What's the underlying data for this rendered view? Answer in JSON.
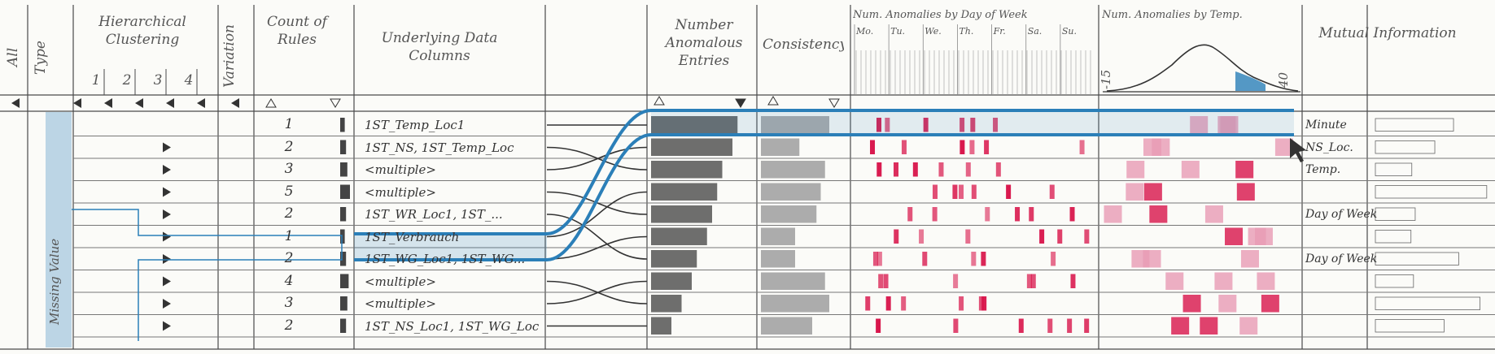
{
  "columns": {
    "all": "All",
    "type": "Type",
    "clustering": "Hierarchical Clustering",
    "clustering_levels": [
      "1",
      "2",
      "3",
      "4"
    ],
    "variation": "Variation",
    "count_rules": "Count of Rules",
    "data_columns": "Underlying Data Columns",
    "anomalous_entries": "Number Anomalous Entries",
    "consistency": "Consistency",
    "day_of_week": "Num. Anomalies by Day of Week",
    "temp": "Num. Anomalies by Temp.",
    "mutual_info": "Mutual Information"
  },
  "days": [
    "Mo.",
    "Tu.",
    "We.",
    "Th.",
    "Fr.",
    "Sa.",
    "Su."
  ],
  "temp_axis": {
    "min": "-15",
    "max": "40"
  },
  "type_label": "Missing Value",
  "rows": [
    {
      "count": "1",
      "columns": "1ST_Temp_Loc1",
      "anomalies": 0.85,
      "consistency": 0.8,
      "mi": "Minute"
    },
    {
      "count": "2",
      "columns": "1ST_NS, 1ST_Temp_Loc",
      "anomalies": 0.8,
      "consistency": 0.45,
      "mi": "NS_Loc."
    },
    {
      "count": "3",
      "columns": "<multiple>",
      "anomalies": 0.7,
      "consistency": 0.75,
      "mi": "Temp."
    },
    {
      "count": "5",
      "columns": "<multiple>",
      "anomalies": 0.65,
      "consistency": 0.7,
      "mi": ""
    },
    {
      "count": "2",
      "columns": "1ST_WR_Loc1, 1ST_...",
      "anomalies": 0.6,
      "consistency": 0.65,
      "mi": "Day of Week"
    },
    {
      "count": "1",
      "columns": "1ST_Verbrauch",
      "anomalies": 0.55,
      "consistency": 0.4,
      "mi": ""
    },
    {
      "count": "2",
      "columns": "1ST_WG_Loc1, 1ST_WG...",
      "anomalies": 0.45,
      "consistency": 0.4,
      "mi": "Day of Week"
    },
    {
      "count": "4",
      "columns": "<multiple>",
      "anomalies": 0.4,
      "consistency": 0.75,
      "mi": ""
    },
    {
      "count": "3",
      "columns": "<multiple>",
      "anomalies": 0.3,
      "consistency": 0.8,
      "mi": ""
    },
    {
      "count": "2",
      "columns": "1ST_NS_Loc1, 1ST_WG_Loc",
      "anomalies": 0.2,
      "consistency": 0.6,
      "mi": ""
    }
  ],
  "colors": {
    "highlight": "#2b7fb8",
    "anomaly": "#d8144a",
    "anomaly_light": "#e99bb4",
    "pencil": "#4a4a4a"
  }
}
